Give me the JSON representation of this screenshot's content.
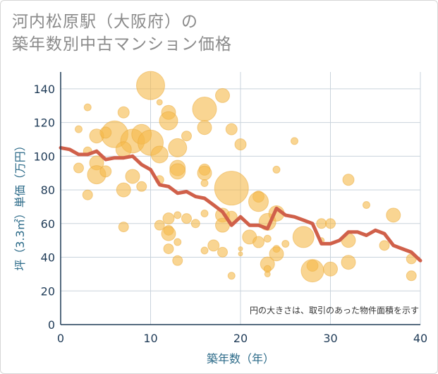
{
  "title_lines": [
    "河内松原駅（大阪府）の",
    "築年数別中古マンション価格"
  ],
  "chart_data": {
    "type": "scatter",
    "title": "河内松原駅（大阪府）の築年数別中古マンション価格",
    "xlabel": "築年数（年）",
    "ylabel": "坪（3.3㎡）単価（万円）",
    "xlim": [
      0,
      40
    ],
    "ylim": [
      0,
      150
    ],
    "xticks": [
      0,
      10,
      20,
      30,
      40
    ],
    "yticks": [
      0,
      20,
      40,
      60,
      80,
      100,
      120,
      140
    ],
    "grid": true,
    "note": "円の大きさは、取引のあった物件面積を示す",
    "bubble_color": "#f5b94a",
    "line_color": "#d0604a",
    "bubbles": [
      {
        "x": 10,
        "y": 142,
        "s": 20
      },
      {
        "x": 16,
        "y": 128,
        "s": 17
      },
      {
        "x": 18,
        "y": 136,
        "s": 10
      },
      {
        "x": 3,
        "y": 129,
        "s": 5
      },
      {
        "x": 7,
        "y": 126,
        "s": 8
      },
      {
        "x": 12,
        "y": 126,
        "s": 10
      },
      {
        "x": 12,
        "y": 121,
        "s": 13
      },
      {
        "x": 11,
        "y": 132,
        "s": 4
      },
      {
        "x": 6,
        "y": 113,
        "s": 19
      },
      {
        "x": 8,
        "y": 109,
        "s": 17
      },
      {
        "x": 9,
        "y": 113,
        "s": 14
      },
      {
        "x": 10,
        "y": 108,
        "s": 18
      },
      {
        "x": 11,
        "y": 101,
        "s": 12
      },
      {
        "x": 4,
        "y": 112,
        "s": 10
      },
      {
        "x": 5,
        "y": 114,
        "s": 8
      },
      {
        "x": 2,
        "y": 116,
        "s": 5
      },
      {
        "x": 3,
        "y": 103,
        "s": 6
      },
      {
        "x": 2,
        "y": 93,
        "s": 7
      },
      {
        "x": 4,
        "y": 96,
        "s": 10
      },
      {
        "x": 4,
        "y": 89,
        "s": 13
      },
      {
        "x": 5,
        "y": 91,
        "s": 8
      },
      {
        "x": 7,
        "y": 104,
        "s": 11
      },
      {
        "x": 8,
        "y": 88,
        "s": 10
      },
      {
        "x": 9,
        "y": 82,
        "s": 7
      },
      {
        "x": 7,
        "y": 80,
        "s": 10
      },
      {
        "x": 3,
        "y": 77,
        "s": 7
      },
      {
        "x": 13,
        "y": 105,
        "s": 13
      },
      {
        "x": 13,
        "y": 93,
        "s": 11
      },
      {
        "x": 13,
        "y": 91,
        "s": 11
      },
      {
        "x": 14,
        "y": 112,
        "s": 7
      },
      {
        "x": 11,
        "y": 86,
        "s": 6
      },
      {
        "x": 16,
        "y": 117,
        "s": 10
      },
      {
        "x": 16,
        "y": 92,
        "s": 8
      },
      {
        "x": 16,
        "y": 90,
        "s": 10
      },
      {
        "x": 16,
        "y": 84,
        "s": 5
      },
      {
        "x": 19,
        "y": 116,
        "s": 8
      },
      {
        "x": 20,
        "y": 107,
        "s": 8
      },
      {
        "x": 19,
        "y": 81,
        "s": 24
      },
      {
        "x": 18,
        "y": 65,
        "s": 10
      },
      {
        "x": 19,
        "y": 64,
        "s": 8
      },
      {
        "x": 16,
        "y": 66,
        "s": 5
      },
      {
        "x": 15,
        "y": 60,
        "s": 6
      },
      {
        "x": 18,
        "y": 59,
        "s": 10
      },
      {
        "x": 17,
        "y": 47,
        "s": 8
      },
      {
        "x": 16,
        "y": 44,
        "s": 5
      },
      {
        "x": 18,
        "y": 43,
        "s": 7
      },
      {
        "x": 19,
        "y": 29,
        "s": 5
      },
      {
        "x": 22,
        "y": 76,
        "s": 8
      },
      {
        "x": 22,
        "y": 73,
        "s": 14
      },
      {
        "x": 21,
        "y": 52,
        "s": 10
      },
      {
        "x": 22,
        "y": 49,
        "s": 8
      },
      {
        "x": 20,
        "y": 45,
        "s": 3
      },
      {
        "x": 20,
        "y": 42,
        "s": 3
      },
      {
        "x": 23,
        "y": 61,
        "s": 12
      },
      {
        "x": 23,
        "y": 51,
        "s": 5
      },
      {
        "x": 23,
        "y": 36,
        "s": 10
      },
      {
        "x": 23,
        "y": 33,
        "s": 5
      },
      {
        "x": 23,
        "y": 30,
        "s": 4
      },
      {
        "x": 24,
        "y": 66,
        "s": 11
      },
      {
        "x": 24,
        "y": 45,
        "s": 5
      },
      {
        "x": 24,
        "y": 42,
        "s": 10
      },
      {
        "x": 24,
        "y": 92,
        "s": 5
      },
      {
        "x": 26,
        "y": 109,
        "s": 5
      },
      {
        "x": 25,
        "y": 48,
        "s": 5
      },
      {
        "x": 27,
        "y": 52,
        "s": 15
      },
      {
        "x": 28,
        "y": 35,
        "s": 8
      },
      {
        "x": 28,
        "y": 32,
        "s": 16
      },
      {
        "x": 29,
        "y": 60,
        "s": 7
      },
      {
        "x": 30,
        "y": 60,
        "s": 7
      },
      {
        "x": 30,
        "y": 33,
        "s": 10
      },
      {
        "x": 29,
        "y": 50,
        "s": 4
      },
      {
        "x": 32,
        "y": 86,
        "s": 8
      },
      {
        "x": 32,
        "y": 50,
        "s": 10
      },
      {
        "x": 32,
        "y": 37,
        "s": 10
      },
      {
        "x": 34,
        "y": 71,
        "s": 5
      },
      {
        "x": 36,
        "y": 47,
        "s": 7
      },
      {
        "x": 37,
        "y": 65,
        "s": 10
      },
      {
        "x": 39,
        "y": 39,
        "s": 7
      },
      {
        "x": 39,
        "y": 29,
        "s": 7
      },
      {
        "x": 11,
        "y": 59,
        "s": 7
      },
      {
        "x": 12,
        "y": 63,
        "s": 8
      },
      {
        "x": 12,
        "y": 56,
        "s": 7
      },
      {
        "x": 12,
        "y": 54,
        "s": 10
      },
      {
        "x": 13,
        "y": 65,
        "s": 5
      },
      {
        "x": 13,
        "y": 49,
        "s": 5
      },
      {
        "x": 12,
        "y": 45,
        "s": 7
      },
      {
        "x": 13,
        "y": 38,
        "s": 7
      },
      {
        "x": 14,
        "y": 63,
        "s": 7
      },
      {
        "x": 7,
        "y": 58,
        "s": 7
      }
    ],
    "series": [
      {
        "x": [
          0,
          1,
          2,
          3,
          4,
          5,
          6,
          7,
          8,
          9,
          10,
          11,
          12,
          13,
          14,
          15,
          16,
          17,
          18,
          19,
          20,
          21,
          22,
          23,
          24,
          25,
          26,
          27,
          28,
          29,
          30,
          31,
          32,
          33,
          34,
          35,
          36,
          37,
          38,
          39,
          40
        ],
        "y": [
          105,
          104,
          101,
          101,
          103,
          98,
          99,
          99,
          100,
          95,
          92,
          83,
          82,
          78,
          79,
          76,
          75,
          71,
          67,
          59,
          64,
          59,
          59,
          57,
          69,
          65,
          64,
          62,
          60,
          48,
          48,
          50,
          55,
          55,
          53,
          56,
          54,
          47,
          45,
          43,
          38
        ]
      }
    ]
  }
}
